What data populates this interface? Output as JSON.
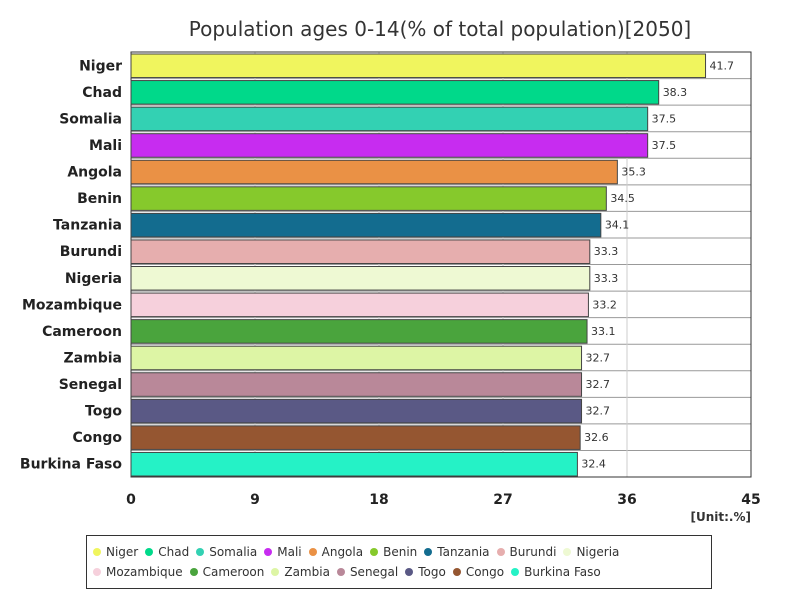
{
  "chart_data": {
    "type": "bar",
    "orientation": "horizontal",
    "title": "Population ages 0-14(% of total population)[2050]",
    "unit_label": "[Unit:.%]",
    "xlim": [
      0,
      45
    ],
    "x_ticks": [
      0,
      9,
      18,
      27,
      36,
      45
    ],
    "categories": [
      "Niger",
      "Chad",
      "Somalia",
      "Mali",
      "Angola",
      "Benin",
      "Tanzania",
      "Burundi",
      "Nigeria",
      "Mozambique",
      "Cameroon",
      "Zambia",
      "Senegal",
      "Togo",
      "Congo",
      "Burkina Faso"
    ],
    "values": [
      41.7,
      38.3,
      37.5,
      37.5,
      35.3,
      34.5,
      34.1,
      33.3,
      33.3,
      33.2,
      33.1,
      32.7,
      32.7,
      32.7,
      32.6,
      32.4
    ],
    "colors": [
      "#f0f55e",
      "#00d98a",
      "#33d1b3",
      "#c72cf0",
      "#ea9145",
      "#86c92c",
      "#136c8f",
      "#e6aeae",
      "#eef9d3",
      "#f6d0dc",
      "#4aa43d",
      "#ddf5a5",
      "#b98899",
      "#5a5985",
      "#955631",
      "#25f2c6"
    ],
    "legend": {
      "position": "bottom",
      "entries": [
        "Niger",
        "Chad",
        "Somalia",
        "Mali",
        "Angola",
        "Benin",
        "Tanzania",
        "Burundi",
        "Nigeria",
        "Mozambique",
        "Cameroon",
        "Zambia",
        "Senegal",
        "Togo",
        "Congo",
        "Burkina Faso"
      ]
    },
    "grid": true
  }
}
